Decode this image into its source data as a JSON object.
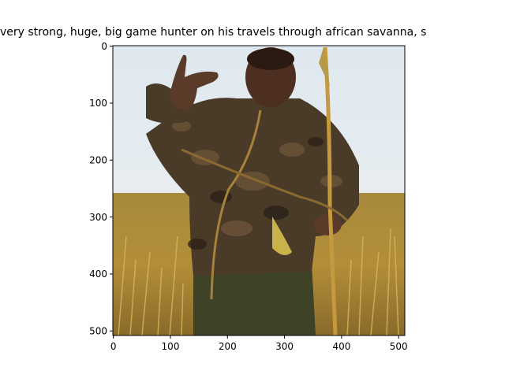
{
  "figure": {
    "title": "very strong, huge, big game hunter on his travels through african savanna, s",
    "x_ticks": [
      "0",
      "100",
      "200",
      "300",
      "400",
      "500"
    ],
    "y_ticks": [
      "0",
      "100",
      "200",
      "300",
      "400",
      "500"
    ],
    "image_description_colors": {
      "sky": "#e9eef2",
      "grass": "#b8923a",
      "shirt": "#4a3a28",
      "skin": "#5a3a28",
      "pants": "#3e4226"
    }
  }
}
